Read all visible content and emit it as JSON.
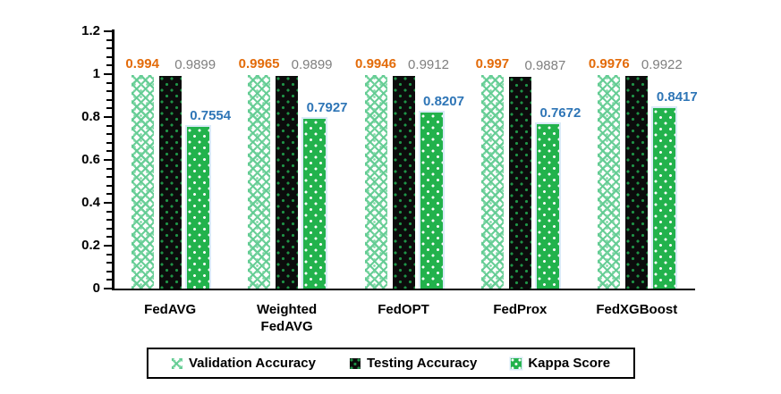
{
  "chart_data": {
    "type": "bar",
    "title": "",
    "xlabel": "",
    "ylabel": "",
    "grid": false,
    "categories": [
      "FedAVG",
      "Weighted FedAVG",
      "FedOPT",
      "FedProx",
      "FedXGBoost"
    ],
    "series": [
      {
        "name": "Validation Accuracy",
        "values": [
          0.994,
          0.9965,
          0.9946,
          0.997,
          0.9976
        ],
        "pattern": "green-trellis-weave",
        "label_color": "#e36b09",
        "label_weight": "700"
      },
      {
        "name": "Testing Accuracy",
        "values": [
          0.9899,
          0.9899,
          0.9912,
          0.9887,
          0.9922
        ],
        "pattern": "black-with-green-dots",
        "label_color": "#7f7f7f",
        "label_weight": "400"
      },
      {
        "name": "Kappa Score",
        "values": [
          0.7554,
          0.7927,
          0.8207,
          0.7672,
          0.8417
        ],
        "pattern": "green-with-white-dots",
        "label_color": "#2e75b6",
        "label_weight": "600"
      }
    ],
    "y_axis": {
      "min": 0,
      "max": 1.2,
      "major_unit": 0.2,
      "minor_unit": 0.04,
      "tick_labels": [
        "0",
        "0.2",
        "0.4",
        "0.6",
        "0.8",
        "1",
        "1.2"
      ]
    },
    "legend": {
      "position": "bottom",
      "entries": [
        "Validation Accuracy",
        "Testing Accuracy",
        "Kappa Score"
      ]
    },
    "colors": {
      "validation_green": "#62cb92",
      "testing_black": "#0c0c0c",
      "testing_dot_green": "#1f9447",
      "kappa_green": "#22b24c",
      "kappa_edge_blue": "#d9eaf7",
      "axis_black": "#000000"
    }
  }
}
